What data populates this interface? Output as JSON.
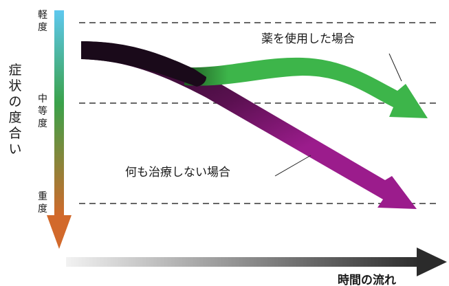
{
  "diagram": {
    "y_axis_label": [
      "症",
      "状",
      "の",
      "度",
      "合",
      "い"
    ],
    "levels": {
      "mild": [
        "軽",
        "度"
      ],
      "moderate": [
        "中",
        "等",
        "度"
      ],
      "severe": [
        "重",
        "度"
      ]
    },
    "x_axis_label": "時間の流れ",
    "paths": {
      "with_medicine": {
        "label": "薬を使用した場合"
      },
      "no_treatment": {
        "label": "何も治療しない場合"
      }
    }
  },
  "colors": {
    "axis_mild": "#5ec8ef",
    "axis_moderate": "#3aa24a",
    "axis_severe": "#d2692b",
    "with_medicine": "#3db54a",
    "no_treatment": "#9b1c8c",
    "start": "#1a0a1a",
    "time_arrow_start": "#f2f2f2",
    "time_arrow_end": "#2b2b2b"
  }
}
